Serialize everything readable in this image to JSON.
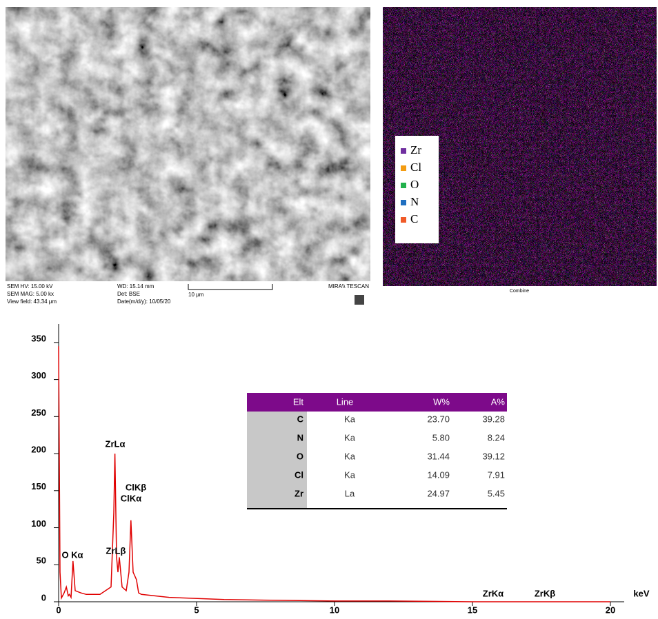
{
  "sem": {
    "hv": "SEM HV: 15.00 kV",
    "wd": "WD: 15.14 mm",
    "mag": "SEM MAG: 5.00 kx",
    "det": "Det: BSE",
    "field": "View field: 43.34 μm",
    "date": "Date(m/d/y): 10/05/20",
    "scale": "10 μm",
    "brand": "MIRA\\\\ TESCAN"
  },
  "map": {
    "caption": "Combine",
    "legend": [
      {
        "name": "Zr",
        "color": "#7030a0"
      },
      {
        "name": "Cl",
        "color": "#f39c12"
      },
      {
        "name": "O",
        "color": "#22b14c"
      },
      {
        "name": "N",
        "color": "#1f6fc0"
      },
      {
        "name": "C",
        "color": "#f05a28"
      }
    ]
  },
  "chart_data": {
    "type": "line",
    "x_label": "keV",
    "color": "#e00000",
    "x": [
      0,
      0.05,
      0.1,
      0.2,
      0.28,
      0.35,
      0.39,
      0.45,
      0.52,
      0.6,
      0.8,
      1.0,
      1.5,
      1.9,
      2.0,
      2.04,
      2.1,
      2.15,
      2.2,
      2.3,
      2.45,
      2.55,
      2.62,
      2.7,
      2.82,
      2.9,
      3.0,
      4,
      6,
      8,
      10,
      12,
      15,
      20
    ],
    "values": [
      345,
      40,
      5,
      12,
      20,
      8,
      10,
      6,
      55,
      15,
      12,
      10,
      10,
      20,
      120,
      200,
      60,
      40,
      60,
      20,
      15,
      40,
      110,
      40,
      30,
      12,
      10,
      6,
      3,
      2,
      1,
      1,
      0,
      0
    ],
    "xlim": [
      0,
      20.5
    ],
    "ylim": [
      0,
      375
    ],
    "xticks": [
      0,
      5,
      10,
      15,
      20
    ],
    "yticks": [
      0,
      50,
      100,
      150,
      200,
      250,
      300,
      350
    ],
    "annotations": [
      "ZrLα",
      "ClKβ",
      "ClKα",
      "ZrLβ",
      "O Kα",
      "ZrKα",
      "ZrKβ"
    ],
    "table": {
      "header": [
        "Elt",
        "Line",
        "W%",
        "A%"
      ],
      "rows": [
        [
          "C",
          "Ka",
          "23.70",
          "39.28"
        ],
        [
          "N",
          "Ka",
          "5.80",
          "8.24"
        ],
        [
          "O",
          "Ka",
          "31.44",
          "39.12"
        ],
        [
          "Cl",
          "Ka",
          "14.09",
          "7.91"
        ],
        [
          "Zr",
          "La",
          "24.97",
          "5.45"
        ]
      ]
    }
  }
}
